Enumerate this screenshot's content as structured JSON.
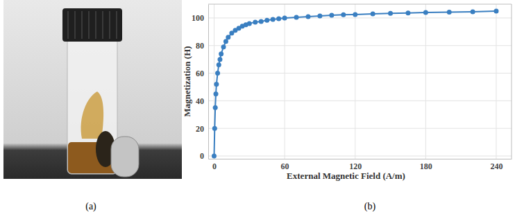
{
  "panels": [
    "(a)",
    "(b)"
  ],
  "chart_data": {
    "type": "line",
    "xlabel": "External Magnetic Field (A/m)",
    "ylabel": "Magnetization (H)",
    "x": [
      0,
      0.5,
      1,
      1.5,
      2,
      3,
      4,
      5,
      6,
      8,
      10,
      12,
      15,
      18,
      21,
      24,
      27,
      30,
      35,
      40,
      45,
      50,
      55,
      60,
      70,
      80,
      90,
      100,
      110,
      120,
      135,
      150,
      165,
      180,
      200,
      220,
      240
    ],
    "values": [
      0,
      20,
      35,
      45,
      52,
      60,
      66,
      70,
      74,
      79,
      83,
      86,
      89,
      91,
      92.5,
      94,
      95,
      96,
      97,
      97.5,
      98.3,
      99,
      99.5,
      100,
      100.5,
      101,
      101.5,
      102,
      102.3,
      102.5,
      103,
      103.3,
      103.6,
      104,
      104.2,
      104.5,
      105
    ],
    "color": "#3a7fc1",
    "marker": "circle",
    "xlim": [
      -5,
      253
    ],
    "ylim": [
      -2,
      110
    ],
    "xticks": [
      0,
      60,
      120,
      180,
      240
    ],
    "yticks": [
      0,
      20,
      40,
      60,
      80,
      100
    ],
    "grid": true
  }
}
